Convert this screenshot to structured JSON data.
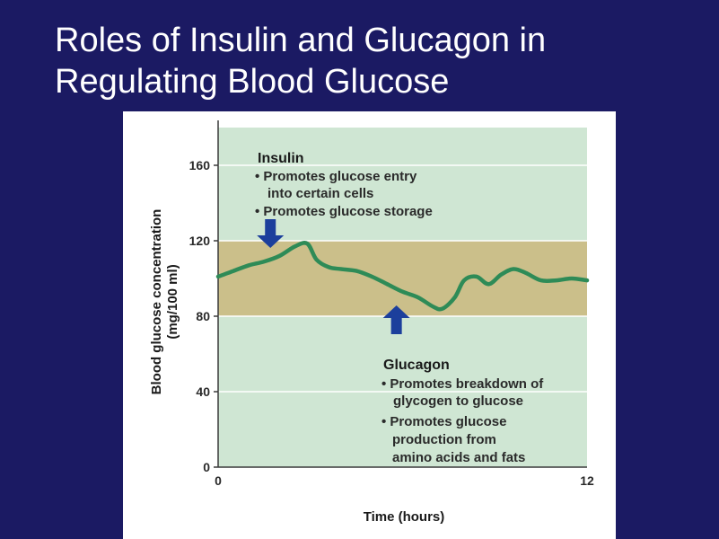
{
  "slide": {
    "title_line1": "Roles of Insulin and Glucagon in",
    "title_line2": "Regulating Blood Glucose"
  },
  "chart_data": {
    "type": "line",
    "title": "",
    "xlabel": "Time (hours)",
    "ylabel_line1": "Blood glucose concentration",
    "ylabel_line2": "(mg/100 ml)",
    "xlim": [
      0,
      12
    ],
    "ylim": [
      0,
      180
    ],
    "x_ticks": [
      0,
      12
    ],
    "x_tick_labels": [
      "0",
      "12"
    ],
    "y_ticks": [
      0,
      40,
      80,
      120,
      160
    ],
    "y_tick_labels": [
      "0",
      "40",
      "80",
      "120",
      "160"
    ],
    "grid": true,
    "normal_range": [
      80,
      120
    ],
    "colors": {
      "background": "#cfe6d3",
      "normal_band": "#cbbf8a",
      "line": "#2e8b57",
      "arrow": "#1c3f9c",
      "grid": "#ffffff"
    },
    "series": [
      {
        "x": [
          0,
          0.5,
          1,
          1.5,
          2,
          2.5,
          2.9,
          3.2,
          3.6,
          4.0,
          4.5,
          5.0,
          5.5,
          6.0,
          6.5,
          7.0,
          7.3,
          7.7,
          8.0,
          8.4,
          8.8,
          9.2,
          9.6,
          10.0,
          10.5,
          11.0,
          11.5,
          12.0
        ],
        "y": [
          101,
          104,
          107,
          109,
          112,
          117,
          118.5,
          110,
          106,
          105,
          104,
          101,
          97,
          93,
          90,
          85,
          84,
          90,
          99,
          101,
          97,
          102,
          105,
          103,
          99,
          99,
          100,
          99
        ]
      }
    ],
    "annotations": [
      {
        "name": "insulin",
        "title": "Insulin",
        "lines": [
          "• Promotes glucose entry",
          "into certain cells",
          "• Promotes glucose storage"
        ],
        "arrow_x": 1.7,
        "arrow_direction": "down"
      },
      {
        "name": "glucagon",
        "title": "Glucagon",
        "lines": [
          "• Promotes breakdown of",
          "glycogen to glucose",
          "• Promotes glucose",
          "production from",
          "amino acids and fats"
        ],
        "arrow_x": 5.8,
        "arrow_direction": "up"
      }
    ]
  }
}
